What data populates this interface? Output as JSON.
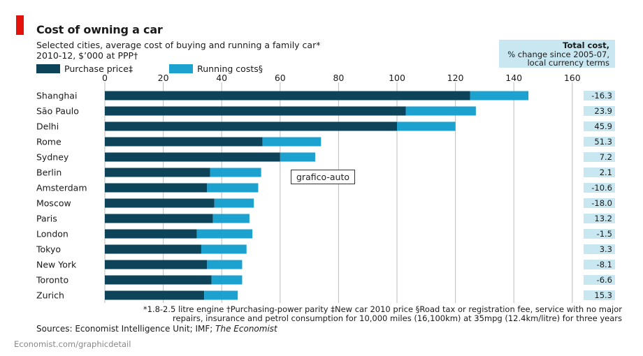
{
  "header": {
    "title": "Cost of owning a car",
    "subtitle_line1": "Selected cities, average cost of buying and running a family car*",
    "subtitle_line2": "2010-12, $’000 at PPP†"
  },
  "legend": {
    "purchase_label": "Purchase price‡",
    "running_label": "Running costs§"
  },
  "callout": {
    "line1": "Total cost,",
    "line2": "% change since 2005-07,",
    "line3": "local currency terms"
  },
  "watermark": "grafico-auto",
  "footnotes": {
    "line1": "*1.8-2.5 litre engine    †Purchasing-power parity    ‡New car 2010 price    §Road tax or registration fee, service with no major",
    "line2": "repairs, insurance and petrol consumption for 10,000 miles (16,100km) at 35mpg (12.4km/litre) for three years"
  },
  "sources": {
    "prefix": "Sources: Economist Intelligence Unit; IMF; ",
    "publication": "The Economist"
  },
  "site": "Economist.com/graphicdetail",
  "colors": {
    "purchase": "#0d4459",
    "running": "#1da2d0",
    "change_box": "#c8e7f0",
    "grid": "#bdbdbd",
    "accent": "#e3120b"
  },
  "chart_data": {
    "type": "bar",
    "orientation": "horizontal",
    "stacked": true,
    "categories": [
      "Shanghai",
      "São Paulo",
      "Delhi",
      "Rome",
      "Sydney",
      "Berlin",
      "Amsterdam",
      "Moscow",
      "Paris",
      "London",
      "Tokyo",
      "New York",
      "Toronto",
      "Zurich"
    ],
    "series": [
      {
        "name": "Purchase price‡",
        "values": [
          125,
          103,
          100,
          54,
          60,
          36,
          35,
          37.5,
          37,
          31.5,
          33,
          35,
          36.5,
          34
        ]
      },
      {
        "name": "Running costs§",
        "values": [
          20,
          24,
          20,
          20,
          12,
          17.5,
          17.5,
          13.5,
          12.5,
          19,
          15.5,
          12,
          10.5,
          11.5
        ]
      }
    ],
    "xticks": [
      0,
      20,
      40,
      60,
      80,
      100,
      120,
      140,
      160
    ],
    "xlim": [
      0,
      160
    ],
    "grid": true,
    "legend_position": "top-left",
    "change_pct": [
      "-16.3",
      "23.9",
      "45.9",
      "51.3",
      "7.2",
      "2.1",
      "-10.6",
      "-18.0",
      "13.2",
      "-1.5",
      "3.3",
      "-8.1",
      "-6.6",
      "15.3"
    ]
  }
}
